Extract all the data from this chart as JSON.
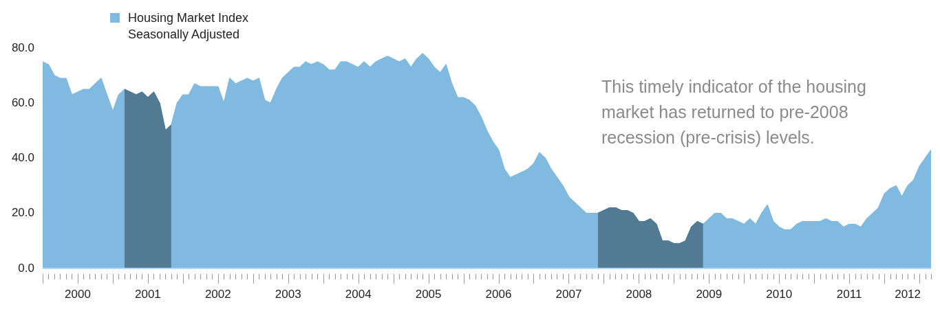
{
  "chart_data": {
    "type": "area",
    "x": [
      "2000-01",
      "2000-02",
      "2000-03",
      "2000-04",
      "2000-05",
      "2000-06",
      "2000-07",
      "2000-08",
      "2000-09",
      "2000-10",
      "2000-11",
      "2000-12",
      "2001-01",
      "2001-02",
      "2001-03",
      "2001-04",
      "2001-05",
      "2001-06",
      "2001-07",
      "2001-08",
      "2001-09",
      "2001-10",
      "2001-11",
      "2001-12",
      "2002-01",
      "2002-02",
      "2002-03",
      "2002-04",
      "2002-05",
      "2002-06",
      "2002-07",
      "2002-08",
      "2002-09",
      "2002-10",
      "2002-11",
      "2002-12",
      "2003-01",
      "2003-02",
      "2003-03",
      "2003-04",
      "2003-05",
      "2003-06",
      "2003-07",
      "2003-08",
      "2003-09",
      "2003-10",
      "2003-11",
      "2003-12",
      "2004-01",
      "2004-02",
      "2004-03",
      "2004-04",
      "2004-05",
      "2004-06",
      "2004-07",
      "2004-08",
      "2004-09",
      "2004-10",
      "2004-11",
      "2004-12",
      "2005-01",
      "2005-02",
      "2005-03",
      "2005-04",
      "2005-05",
      "2005-06",
      "2005-07",
      "2005-08",
      "2005-09",
      "2005-10",
      "2005-11",
      "2005-12",
      "2006-01",
      "2006-02",
      "2006-03",
      "2006-04",
      "2006-05",
      "2006-06",
      "2006-07",
      "2006-08",
      "2006-09",
      "2006-10",
      "2006-11",
      "2006-12",
      "2007-01",
      "2007-02",
      "2007-03",
      "2007-04",
      "2007-05",
      "2007-06",
      "2007-07",
      "2007-08",
      "2007-09",
      "2007-10",
      "2007-11",
      "2007-12",
      "2008-01",
      "2008-02",
      "2008-03",
      "2008-04",
      "2008-05",
      "2008-06",
      "2008-07",
      "2008-08",
      "2008-09",
      "2008-10",
      "2008-11",
      "2008-12",
      "2009-01",
      "2009-02",
      "2009-03",
      "2009-04",
      "2009-05",
      "2009-06",
      "2009-07",
      "2009-08",
      "2009-09",
      "2009-10",
      "2009-11",
      "2009-12",
      "2010-01",
      "2010-02",
      "2010-03",
      "2010-04",
      "2010-05",
      "2010-06",
      "2010-07",
      "2010-08",
      "2010-09",
      "2010-10",
      "2010-11",
      "2010-12",
      "2011-01",
      "2011-02",
      "2011-03",
      "2011-04",
      "2011-05",
      "2011-06",
      "2011-07",
      "2011-08",
      "2011-09",
      "2011-10",
      "2011-11",
      "2011-12",
      "2012-01",
      "2012-02",
      "2012-03",
      "2012-04",
      "2012-05",
      "2012-06",
      "2012-07",
      "2012-08",
      "2012-09"
    ],
    "series": [
      {
        "name": "Housing Market Index Seasonally Adjusted",
        "color": "#80bae0",
        "values": [
          75,
          74,
          70,
          69,
          69,
          63,
          64,
          65,
          65,
          67,
          69,
          63,
          57,
          63,
          65,
          64,
          63,
          64,
          62,
          64,
          60,
          50,
          52,
          60,
          63,
          63,
          67,
          66,
          66,
          66,
          66,
          60,
          69,
          67,
          68,
          69,
          68,
          69,
          61,
          60,
          65,
          69,
          71,
          73,
          73,
          75,
          74,
          75,
          74,
          72,
          72,
          75,
          75,
          74,
          73,
          75,
          73,
          75,
          76,
          77,
          76,
          75,
          76,
          73,
          76,
          78,
          76,
          73,
          71,
          74,
          67,
          62,
          62,
          61,
          59,
          55,
          50,
          46,
          43,
          36,
          33,
          34,
          35,
          36,
          38,
          42,
          40,
          36,
          33,
          30,
          26,
          24,
          22,
          20,
          20,
          20,
          21,
          22,
          22,
          21,
          21,
          20,
          17,
          17,
          18,
          16,
          10,
          10,
          9,
          9,
          10,
          15,
          17,
          16,
          18,
          20,
          20,
          18,
          18,
          17,
          16,
          18,
          16,
          20,
          23,
          17,
          15,
          14,
          14,
          16,
          17,
          17,
          17,
          17,
          18,
          17,
          17,
          15,
          16,
          16,
          15,
          18,
          20,
          22,
          27,
          29,
          30,
          26,
          30,
          32,
          37,
          40,
          43
        ]
      },
      {
        "color": "#527a93",
        "x": [
          "2001-03",
          "2001-04",
          "2001-05",
          "2001-06",
          "2001-07",
          "2001-08",
          "2001-09",
          "2001-10",
          "2001-11"
        ],
        "values": [
          65,
          64,
          63,
          64,
          62,
          64,
          60,
          50,
          52
        ]
      },
      {
        "color": "#527a93",
        "x": [
          "2007-12",
          "2008-01",
          "2008-02",
          "2008-03",
          "2008-04",
          "2008-05",
          "2008-06",
          "2008-07",
          "2008-08",
          "2008-09",
          "2008-10",
          "2008-11",
          "2008-12",
          "2009-01",
          "2009-02",
          "2009-03",
          "2009-04",
          "2009-05",
          "2009-06"
        ],
        "values": [
          20,
          21,
          22,
          22,
          21,
          21,
          20,
          17,
          17,
          18,
          16,
          10,
          10,
          9,
          9,
          10,
          15,
          17,
          16
        ]
      }
    ],
    "xlim": [
      "2000-01",
      "2012-09"
    ],
    "xticks": [
      {
        "value": "2000-07",
        "label": "2000"
      },
      {
        "value": "2001-07",
        "label": "2001"
      },
      {
        "value": "2002-07",
        "label": "2002"
      },
      {
        "value": "2003-07",
        "label": "2003"
      },
      {
        "value": "2004-07",
        "label": "2004"
      },
      {
        "value": "2005-07",
        "label": "2005"
      },
      {
        "value": "2006-07",
        "label": "2006"
      },
      {
        "value": "2007-07",
        "label": "2007"
      },
      {
        "value": "2008-07",
        "label": "2008"
      },
      {
        "value": "2009-07",
        "label": "2009"
      },
      {
        "value": "2010-07",
        "label": "2010"
      },
      {
        "value": "2011-07",
        "label": "2011"
      },
      {
        "value": "2012-05",
        "label": "2012"
      }
    ],
    "ylim": [
      0,
      80
    ],
    "yticks": [
      {
        "value": 0,
        "label": "0.0"
      },
      {
        "value": 20,
        "label": "20.0"
      },
      {
        "value": 40,
        "label": "40.0"
      },
      {
        "value": 60,
        "label": "60.0"
      },
      {
        "value": 80,
        "label": "80.0"
      }
    ],
    "annotations": [
      "This timely indicator of the housing market has returned to pre-2008 recession (pre-crisis) levels."
    ],
    "legend": "top left",
    "grid": false
  }
}
